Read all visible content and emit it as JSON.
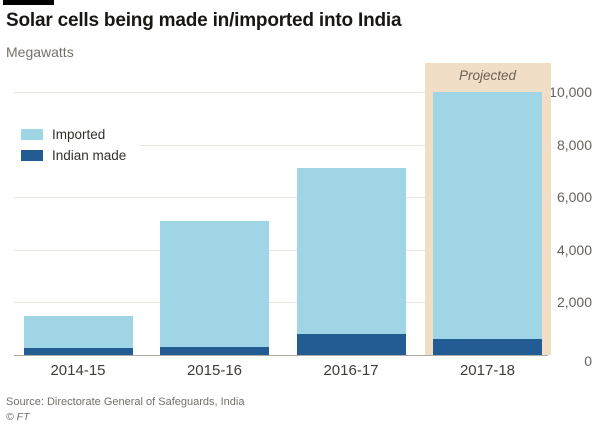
{
  "header": {
    "title": "Solar cells being made in/imported into India",
    "subtitle": "Megawatts"
  },
  "chart_data": {
    "type": "bar",
    "stacked": true,
    "title": "Solar cells being made in/imported into India",
    "ylabel": "Megawatts",
    "xlabel": "",
    "categories": [
      "2014-15",
      "2015-16",
      "2016-17",
      "2017-18"
    ],
    "series": [
      {
        "name": "Imported",
        "color": "#a0d5e5",
        "values": [
          1250,
          4800,
          6300,
          9400
        ]
      },
      {
        "name": "Indian made",
        "color": "#235c92",
        "values": [
          250,
          300,
          800,
          600
        ]
      }
    ],
    "totals": [
      1500,
      5100,
      7100,
      10000
    ],
    "ylim": [
      0,
      11000
    ],
    "yticks": [
      {
        "value": 0,
        "label": "0"
      },
      {
        "value": 2000,
        "label": "2,000"
      },
      {
        "value": 4000,
        "label": "4,000"
      },
      {
        "value": 6000,
        "label": "6,000"
      },
      {
        "value": 8000,
        "label": "8,000"
      },
      {
        "value": 10000,
        "label": "10,000"
      }
    ],
    "grid": "horizontal",
    "yaxis_side": "right",
    "legend_position": "upper-left-inside",
    "annotation": {
      "category": "2017-18",
      "label": "Projected",
      "band_color": "#f1dec7",
      "text_color": "#6b6153"
    },
    "colors": {
      "gridline": "#e9e6e0",
      "axisline": "#afaba3",
      "title_text": "#191714",
      "muted_text": "#74706b",
      "ytick_text": "#66635d",
      "xtick_text": "#403d38"
    }
  },
  "footer": {
    "source": "Source: Directorate General of Safeguards, India",
    "credit": "© FT"
  }
}
